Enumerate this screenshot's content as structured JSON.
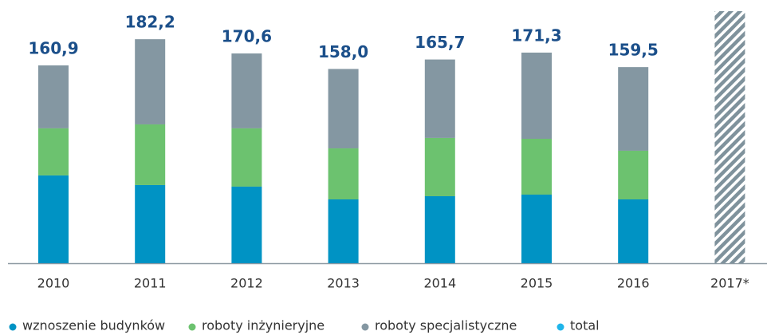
{
  "chart_data": {
    "type": "bar",
    "stacked": true,
    "categories": [
      "2010",
      "2011",
      "2012",
      "2013",
      "2014",
      "2015",
      "2016",
      "2017*"
    ],
    "series": [
      {
        "name": "wznoszenie budynków",
        "color": "#0093c4",
        "values": [
          71.4,
          63.6,
          62.3,
          51.9,
          54.5,
          55.8,
          51.9,
          null
        ]
      },
      {
        "name": "roboty inżynieryjne",
        "color": "#6cc26f",
        "values": [
          38.3,
          49.3,
          47.4,
          41.5,
          47.4,
          45.4,
          39.6,
          null
        ]
      },
      {
        "name": "roboty specjalistyczne",
        "color": "#8497a2",
        "values": [
          51.2,
          69.3,
          60.9,
          64.6,
          63.8,
          70.1,
          68.0,
          null
        ]
      },
      {
        "name": "total",
        "color": "#1fb5ea",
        "values": [
          160.9,
          182.2,
          170.6,
          158.0,
          165.7,
          171.3,
          159.5,
          205
        ],
        "value_labels": [
          "160,9",
          "182,2",
          "170,6",
          "158,0",
          "165,7",
          "171,3",
          "159,5",
          null
        ]
      }
    ],
    "ylim": [
      0,
      205
    ]
  }
}
